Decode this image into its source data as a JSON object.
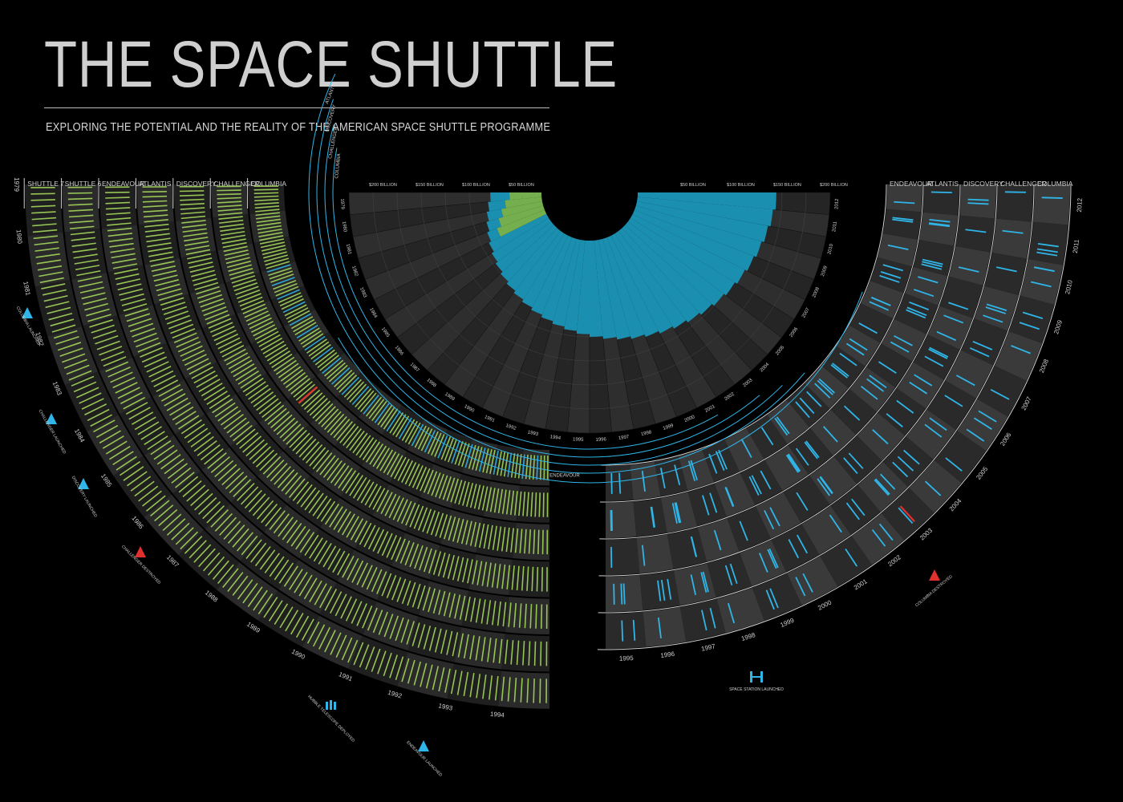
{
  "header": {
    "title": "THE SPACE SHUTTLE",
    "subtitle": "EXPLORING THE POTENTIAL AND THE REALITY OF THE AMERICAN SPACE SHUTTLE PROGRAMME"
  },
  "colors": {
    "background": "#000000",
    "potential_mission": "#a3d65a",
    "actual_mission": "#2fb5e8",
    "disaster": "#e0312f",
    "cost_blue": "#1a8fb0",
    "cost_green": "#79b64f"
  },
  "chart_data": [
    {
      "type": "radial_timeline",
      "section": "potential",
      "tracks": [
        "SHUTTLE 7",
        "SHUTTLE 6",
        "ENDEAVOUR",
        "ATLANTIS",
        "DISCOVERY",
        "CHALLENGER",
        "COLUMBIA"
      ],
      "years": [
        "1979",
        "1980",
        "1981",
        "1982",
        "1983",
        "1984",
        "1985",
        "1986",
        "1987",
        "1988",
        "1989",
        "1990",
        "1991",
        "1992",
        "1993",
        "1994"
      ],
      "events": [
        {
          "label": "COLUMBIA LAUNCHED",
          "year": "1981",
          "icon": "shuttle-icon",
          "color": "#2fb5e8"
        },
        {
          "label": "CHALLENGER LAUNCHED",
          "year": "1983",
          "icon": "shuttle-icon",
          "color": "#2fb5e8"
        },
        {
          "label": "DISCOVERY LAUNCHED",
          "year": "1984",
          "icon": "shuttle-icon",
          "color": "#2fb5e8"
        },
        {
          "label": "CHALLENGER DESTROYED",
          "year": "1986",
          "icon": "shuttle-icon",
          "color": "#e0312f"
        },
        {
          "label": "HUBBLE TELESCOPE DEPLOYED",
          "year": "1990",
          "icon": "telescope-icon",
          "color": "#2fb5e8"
        },
        {
          "label": "ENDEAVOUR LAUNCHED",
          "year": "1992",
          "icon": "shuttle-icon",
          "color": "#2fb5e8"
        }
      ]
    },
    {
      "type": "radial_timeline",
      "section": "reality",
      "tracks": [
        "COLUMBIA",
        "CHALLENGER",
        "DISCOVERY",
        "ATLANTIS",
        "ENDEAVOUR"
      ],
      "years": [
        "1995",
        "1996",
        "1997",
        "1998",
        "1999",
        "2000",
        "2001",
        "2002",
        "2003",
        "2004",
        "2005",
        "2006",
        "2007",
        "2008",
        "2009",
        "2010",
        "2011",
        "2012"
      ],
      "events": [
        {
          "label": "SPACE STATION LAUNCHED",
          "year": "1998",
          "icon": "space-station-icon",
          "color": "#2fb5e8"
        },
        {
          "label": "COLUMBIA DESTROYED",
          "year": "2003",
          "icon": "shuttle-icon",
          "color": "#e0312f"
        }
      ]
    },
    {
      "type": "radial_area",
      "section": "cost",
      "years": [
        "1979",
        "1980",
        "1981",
        "1982",
        "1983",
        "1984",
        "1985",
        "1986",
        "1987",
        "1988",
        "1989",
        "1990",
        "1991",
        "1992",
        "1993",
        "1994",
        "1995",
        "1996",
        "1997",
        "1998",
        "1999",
        "2000",
        "2001",
        "2002",
        "2003",
        "2004",
        "2005",
        "2006",
        "2007",
        "2008",
        "2009",
        "2010",
        "2011",
        "2012"
      ],
      "scale_labels_left": [
        "$200 BILLION",
        "$150 BILLION",
        "$100 BILLION",
        "$50 BILLION"
      ],
      "scale_labels_right": [
        "$50 BILLION",
        "$100 BILLION",
        "$150 BILLION",
        "$200 BILLION"
      ],
      "orbiter_arcs": [
        "COLUMBIA",
        "CHALLENGER",
        "DISCOVERY",
        "ATLANTIS",
        "ENDEAVOUR"
      ]
    }
  ]
}
